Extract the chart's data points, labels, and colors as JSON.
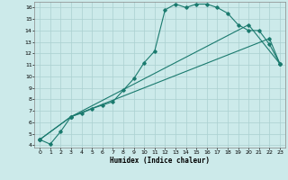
{
  "xlabel": "Humidex (Indice chaleur)",
  "bg_color": "#cceaea",
  "grid_color": "#aad0d0",
  "line_color": "#1a7a6e",
  "xlim": [
    -0.5,
    23.5
  ],
  "ylim": [
    3.8,
    16.5
  ],
  "xticks": [
    0,
    1,
    2,
    3,
    4,
    5,
    6,
    7,
    8,
    9,
    10,
    11,
    12,
    13,
    14,
    15,
    16,
    17,
    18,
    19,
    20,
    21,
    22,
    23
  ],
  "yticks": [
    4,
    5,
    6,
    7,
    8,
    9,
    10,
    11,
    12,
    13,
    14,
    15,
    16
  ],
  "line1_x": [
    0,
    1,
    2,
    3,
    4,
    5,
    6,
    7,
    8,
    9,
    10,
    11,
    12,
    13,
    14,
    15,
    16,
    17,
    18,
    19,
    20,
    21,
    22,
    23
  ],
  "line1_y": [
    4.5,
    4.1,
    5.2,
    6.5,
    6.8,
    7.2,
    7.5,
    7.8,
    8.8,
    9.8,
    11.2,
    12.2,
    15.8,
    16.3,
    16.0,
    16.3,
    16.3,
    16.0,
    15.5,
    14.5,
    14.0,
    14.0,
    12.8,
    11.1
  ],
  "line2_x": [
    0,
    3,
    20,
    23
  ],
  "line2_y": [
    4.5,
    6.5,
    14.5,
    11.1
  ],
  "line3_x": [
    0,
    3,
    22,
    23
  ],
  "line3_y": [
    4.5,
    6.5,
    13.3,
    11.1
  ]
}
